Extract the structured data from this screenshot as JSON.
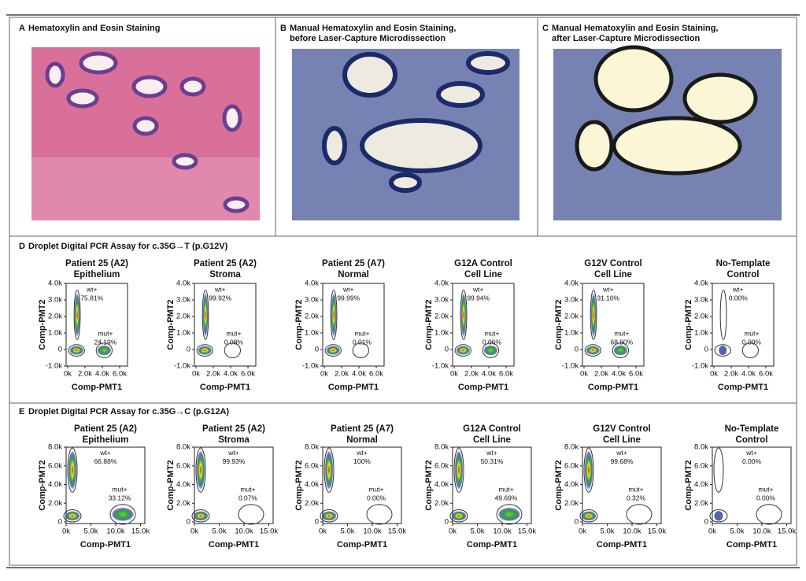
{
  "panels": [
    {
      "label": "A",
      "title": [
        "Hematoxylin and Eosin Staining"
      ]
    },
    {
      "label": "B",
      "title": [
        "Manual Hematoxylin and Eosin Staining,",
        "before Laser-Capture Microdissection"
      ]
    },
    {
      "label": "C",
      "title": [
        "Manual Hematoxylin and Eosin Staining,",
        "after Laser-Capture Microdissection"
      ]
    }
  ],
  "assays": [
    {
      "label": "D",
      "title": "Droplet Digital PCR Assay for c.35G→T (p.G12V)",
      "x_label": "Comp-PMT1",
      "y_label": "Comp-PMT2",
      "xticks": [
        "0k",
        "2.0k",
        "4.0k",
        "6.0k"
      ],
      "yticks": [
        "-1.0k",
        "0",
        "1.0k",
        "2.0k",
        "3.0k",
        "4.0k"
      ],
      "plots": [
        {
          "title": [
            "Patient 25 (A2)",
            "Epithelium"
          ],
          "wt": [
            "wt+",
            "75.81%"
          ],
          "mut": [
            "mut+",
            "24.19%"
          ]
        },
        {
          "title": [
            "Patient 25 (A2)",
            "Stroma"
          ],
          "wt": [
            "wt+",
            "99.92%"
          ],
          "mut": [
            "mut+",
            "0.08%"
          ]
        },
        {
          "title": [
            "Patient 25 (A7)",
            "Normal"
          ],
          "wt": [
            "wt+",
            "99.99%"
          ],
          "mut": [
            "mut+",
            "0.01%"
          ]
        },
        {
          "title": [
            "G12A Control",
            "Cell Line"
          ],
          "wt": [
            "wt+",
            "99.94%"
          ],
          "mut": [
            "mut+",
            "0.06%"
          ]
        },
        {
          "title": [
            "G12V Control",
            "Cell Line"
          ],
          "wt": [
            "wt+",
            "31.10%"
          ],
          "mut": [
            "mut+",
            "68.90%"
          ]
        },
        {
          "title": [
            "No-Template",
            "Control"
          ],
          "wt": [
            "wt+",
            "0.00%"
          ],
          "mut": [
            "mut+",
            "0.00%"
          ]
        }
      ]
    },
    {
      "label": "E",
      "title": "Droplet Digital PCR Assay for c.35G→C (p.G12A)",
      "x_label": "Comp-PMT1",
      "y_label": "Comp-PMT2",
      "xticks": [
        "0k",
        "5.0k",
        "10.0k",
        "15.0k"
      ],
      "yticks": [
        "0",
        "2.0k",
        "4.0k",
        "6.0k",
        "8.0k"
      ],
      "plots": [
        {
          "title": [
            "Patient 25 (A2)",
            "Epithelium"
          ],
          "wt": [
            "wt+",
            "66.88%"
          ],
          "mut": [
            "mut+",
            "33.12%"
          ]
        },
        {
          "title": [
            "Patient 25 (A2)",
            "Stroma"
          ],
          "wt": [
            "wt+",
            "99.93%"
          ],
          "mut": [
            "mut+",
            "0.07%"
          ]
        },
        {
          "title": [
            "Patient 25 (A7)",
            "Normal"
          ],
          "wt": [
            "wt+",
            "100%"
          ],
          "mut": [
            "mut+",
            "0.00%"
          ]
        },
        {
          "title": [
            "G12A Control",
            "Cell Line"
          ],
          "wt": [
            "wt+",
            "50.31%"
          ],
          "mut": [
            "mut+",
            "49.69%"
          ]
        },
        {
          "title": [
            "G12V Control",
            "Cell Line"
          ],
          "wt": [
            "wt+",
            "99.68%"
          ],
          "mut": [
            "mut+",
            "0.32%"
          ]
        },
        {
          "title": [
            "No-Template",
            "Control"
          ],
          "wt": [
            "wt+",
            "0.00%"
          ],
          "mut": [
            "mut+",
            "0.00%"
          ]
        }
      ]
    }
  ]
}
